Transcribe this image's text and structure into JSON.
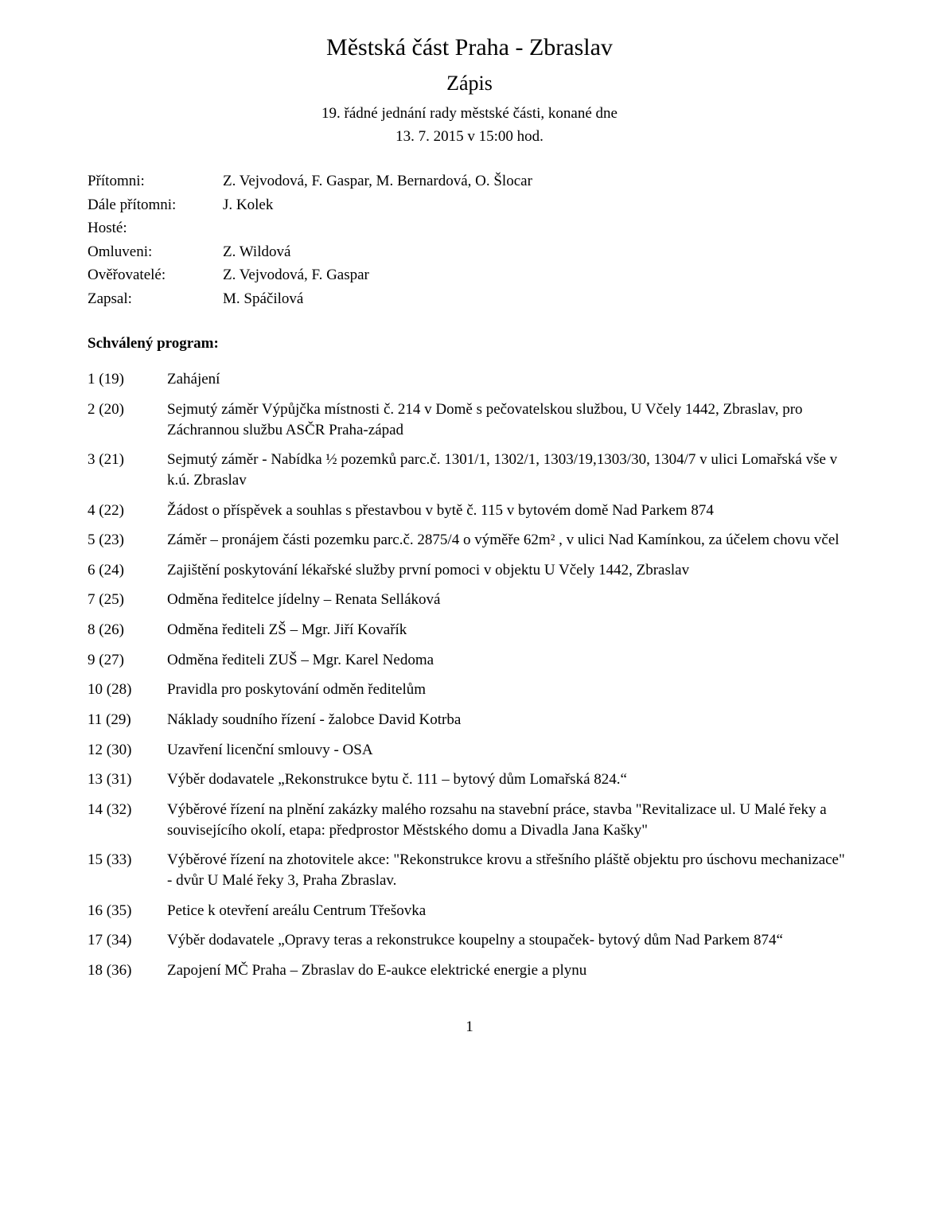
{
  "header": {
    "title": "Městská část Praha - Zbraslav",
    "subtitle": "Zápis",
    "meeting_line": "19. řádné jednání rady městské části, konané dne",
    "datetime": "13. 7. 2015 v 15:00 hod."
  },
  "attendance": {
    "rows": [
      {
        "label": "Přítomni:",
        "value": "Z. Vejvodová, F. Gaspar, M. Bernardová, O. Šlocar"
      },
      {
        "label": "Dále přítomni:",
        "value": "J. Kolek"
      },
      {
        "label": "Hosté:",
        "value": ""
      },
      {
        "label": "Omluveni:",
        "value": "Z. Wildová"
      },
      {
        "label": "Ověřovatelé:",
        "value": "Z. Vejvodová, F. Gaspar"
      },
      {
        "label": "Zapsal:",
        "value": "M. Spáčilová"
      }
    ]
  },
  "approved_program_heading": "Schválený program:",
  "program": [
    {
      "num": "1 (19)",
      "text": "Zahájení"
    },
    {
      "num": "2 (20)",
      "text": "Sejmutý záměr Výpůjčka místnosti č. 214 v Domě s pečovatelskou službou, U Včely 1442, Zbraslav, pro Záchrannou službu ASČR Praha-západ"
    },
    {
      "num": "3 (21)",
      "text": "Sejmutý záměr - Nabídka ½ pozemků parc.č. 1301/1, 1302/1, 1303/19,1303/30, 1304/7 v ulici Lomařská vše v k.ú. Zbraslav"
    },
    {
      "num": "4 (22)",
      "text": "Žádost o příspěvek a souhlas s přestavbou v bytě č. 115 v bytovém domě Nad Parkem 874"
    },
    {
      "num": "5 (23)",
      "text": "Záměr – pronájem části pozemku parc.č. 2875/4 o výměře 62m² , v ulici Nad Kamínkou, za účelem chovu včel"
    },
    {
      "num": "6 (24)",
      "text": "Zajištění poskytování lékařské služby první pomoci v objektu U Včely 1442, Zbraslav"
    },
    {
      "num": "7 (25)",
      "text": "Odměna ředitelce jídelny – Renata Selláková"
    },
    {
      "num": "8 (26)",
      "text": "Odměna řediteli ZŠ – Mgr. Jiří Kovařík"
    },
    {
      "num": "9 (27)",
      "text": "Odměna řediteli ZUŠ – Mgr. Karel Nedoma"
    },
    {
      "num": "10 (28)",
      "text": "Pravidla pro poskytování odměn ředitelům"
    },
    {
      "num": "11 (29)",
      "text": "Náklady soudního řízení - žalobce David Kotrba"
    },
    {
      "num": "12 (30)",
      "text": "Uzavření licenční smlouvy - OSA"
    },
    {
      "num": "13 (31)",
      "text": "Výběr dodavatele „Rekonstrukce bytu č. 111 – bytový dům Lomařská 824.“"
    },
    {
      "num": "14 (32)",
      "text": "Výběrové řízení na plnění zakázky malého rozsahu na stavební práce, stavba \"Revitalizace ul. U Malé řeky a souvisejícího okolí, etapa: předprostor Městského domu a Divadla Jana Kašky\""
    },
    {
      "num": "15 (33)",
      "text": "Výběrové řízení na zhotovitele akce: \"Rekonstrukce krovu a střešního pláště objektu pro úschovu mechanizace\" - dvůr U Malé řeky 3, Praha Zbraslav."
    },
    {
      "num": "16 (35)",
      "text": "Petice k otevření areálu Centrum Třešovka"
    },
    {
      "num": "17 (34)",
      "text": "Výběr dodavatele „Opravy teras a rekonstrukce koupelny a stoupaček- bytový dům Nad Parkem 874“"
    },
    {
      "num": "18 (36)",
      "text": "Zapojení MČ Praha – Zbraslav do E-aukce elektrické energie a plynu"
    }
  ],
  "page_number": "1"
}
